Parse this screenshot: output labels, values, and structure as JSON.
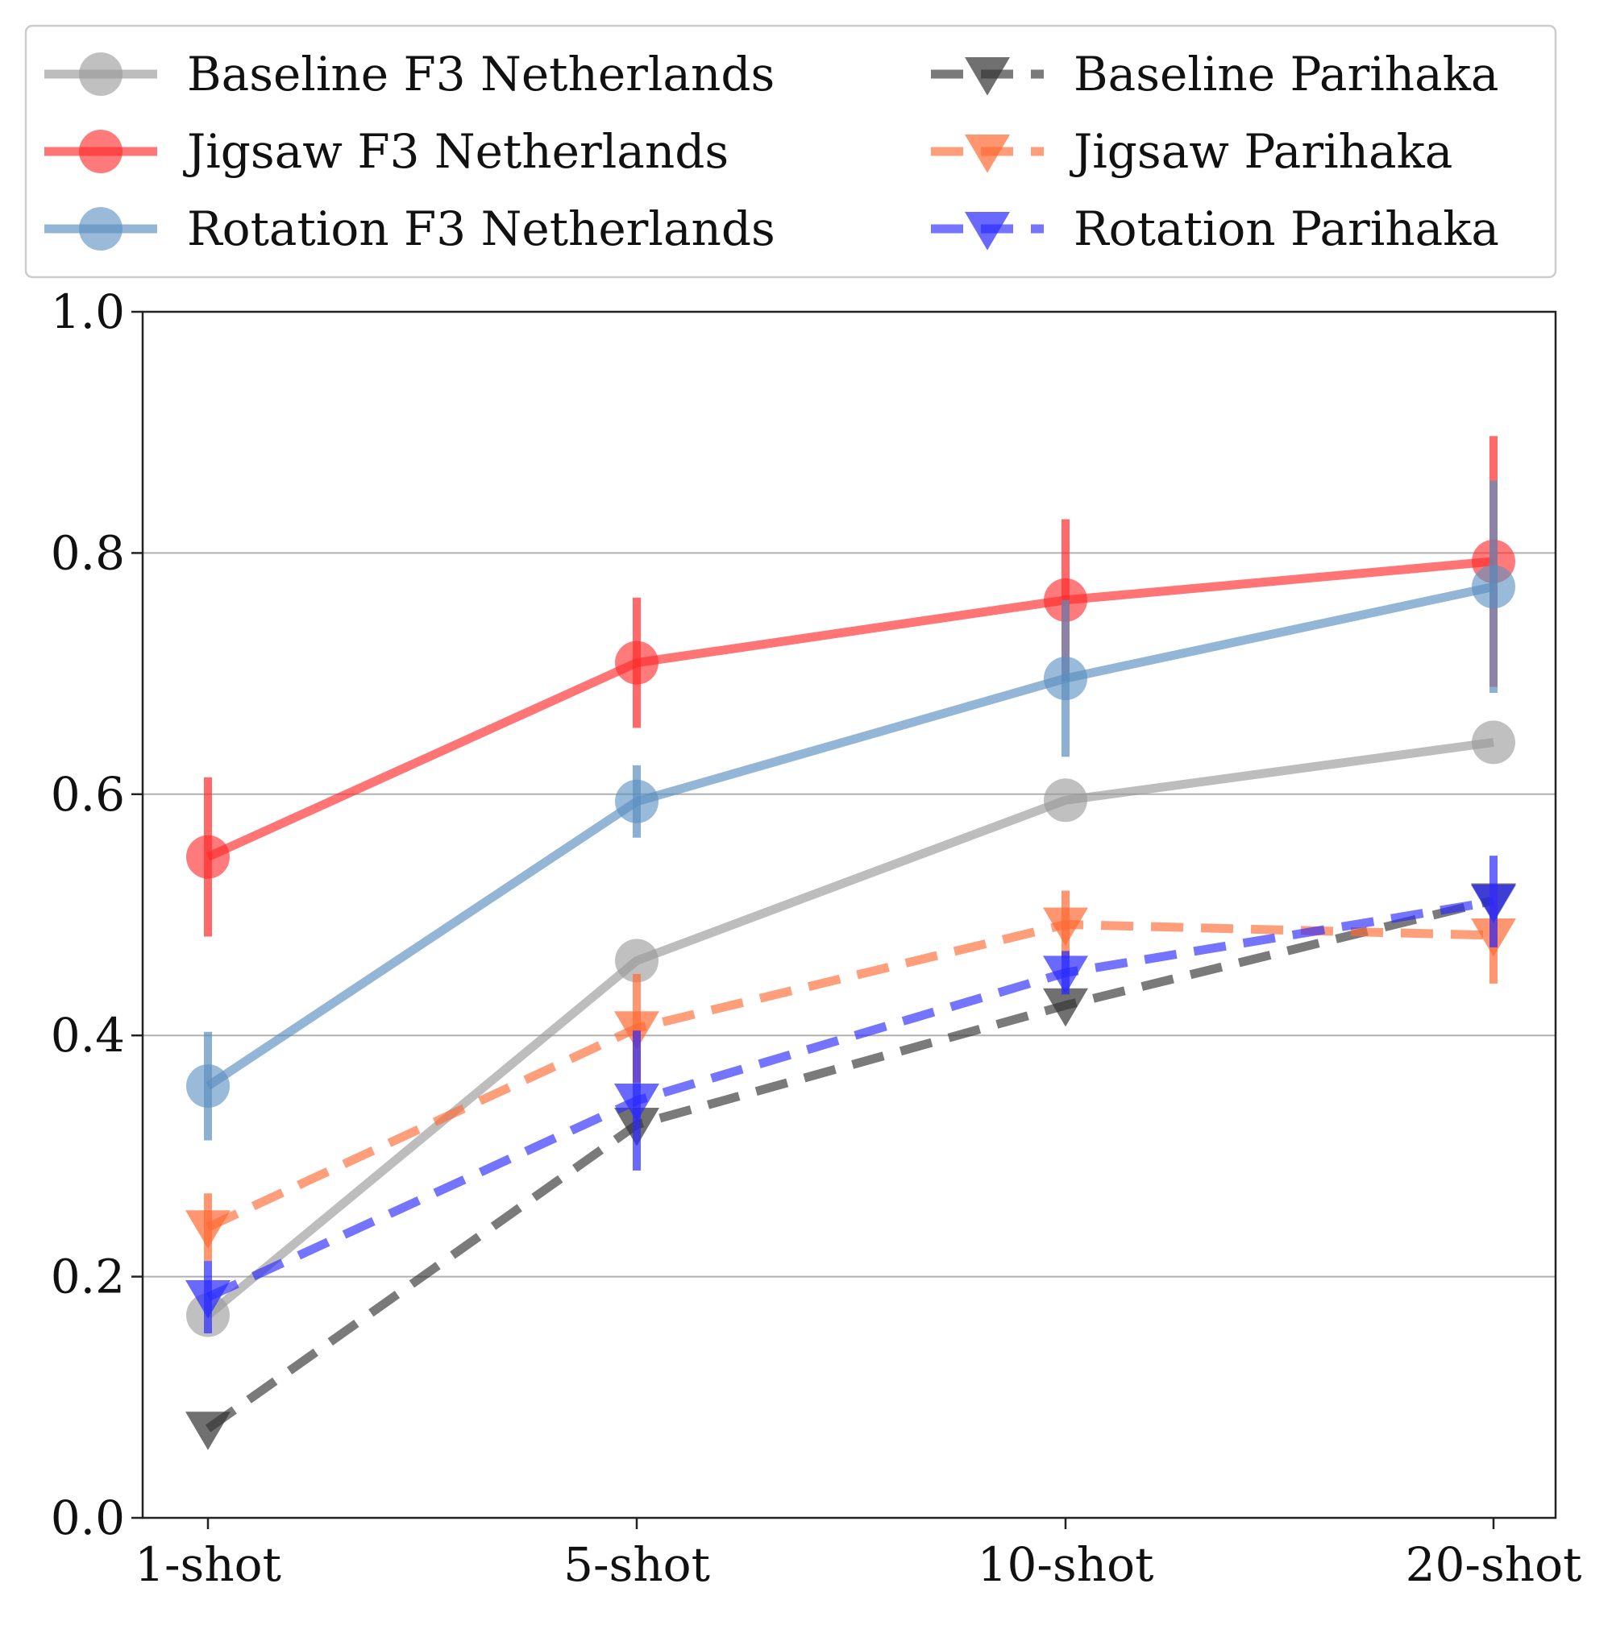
{
  "chart_data": {
    "type": "line",
    "categories": [
      "1-shot",
      "5-shot",
      "10-shot",
      "20-shot"
    ],
    "ylim": [
      0.0,
      1.0
    ],
    "yticks": [
      "0.0",
      "0.2",
      "0.4",
      "0.6",
      "0.8",
      "1.0"
    ],
    "grid": "horizontal",
    "legend_position": "top, above plot, two columns",
    "series": [
      {
        "name": "Baseline F3 Netherlands",
        "color": "#999999",
        "marker": "circle",
        "dashed": false,
        "values": [
          0.168,
          0.462,
          0.595,
          0.643
        ],
        "err": [
          0.0,
          0.0,
          0.0,
          0.0
        ]
      },
      {
        "name": "Jigsaw F3 Netherlands",
        "color": "#ff2a2a",
        "marker": "circle",
        "dashed": false,
        "values": [
          0.548,
          0.709,
          0.761,
          0.793
        ],
        "err": [
          0.066,
          0.054,
          0.067,
          0.104
        ]
      },
      {
        "name": "Rotation F3 Netherlands",
        "color": "#5b8fc0",
        "marker": "circle",
        "dashed": false,
        "values": [
          0.358,
          0.594,
          0.696,
          0.772
        ],
        "err": [
          0.045,
          0.03,
          0.065,
          0.088
        ]
      },
      {
        "name": "Baseline Parihaka",
        "color": "#333333",
        "marker": "triangle-down",
        "dashed": true,
        "values": [
          0.074,
          0.326,
          0.425,
          0.512
        ],
        "err": [
          0.0,
          0.0,
          0.0,
          0.0
        ]
      },
      {
        "name": "Jigsaw Parihaka",
        "color": "#ff6a33",
        "marker": "triangle-down",
        "dashed": true,
        "values": [
          0.241,
          0.406,
          0.492,
          0.483
        ],
        "err": [
          0.028,
          0.045,
          0.028,
          0.04
        ]
      },
      {
        "name": "Rotation Parihaka",
        "color": "#2a2aff",
        "marker": "triangle-down",
        "dashed": true,
        "values": [
          0.183,
          0.346,
          0.452,
          0.511
        ],
        "err": [
          0.03,
          0.058,
          0.018,
          0.038
        ]
      }
    ]
  }
}
